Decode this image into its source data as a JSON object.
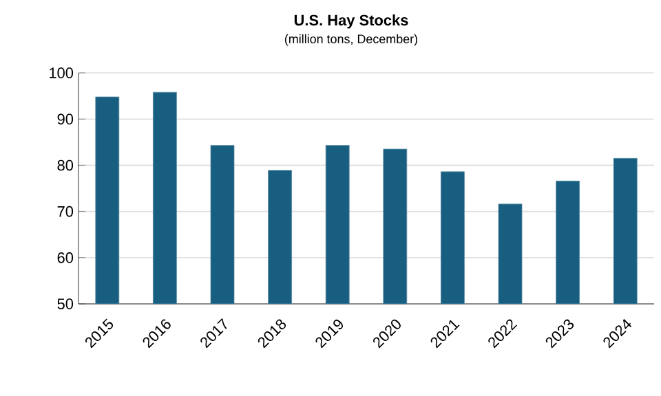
{
  "chart_data": {
    "type": "bar",
    "title": "U.S. Hay Stocks",
    "subtitle": "(million tons, December)",
    "categories": [
      "2015",
      "2016",
      "2017",
      "2018",
      "2019",
      "2020",
      "2021",
      "2022",
      "2023",
      "2024"
    ],
    "values": [
      94.8,
      95.8,
      84.3,
      78.9,
      84.3,
      83.5,
      78.6,
      71.6,
      76.6,
      81.5
    ],
    "color": "#175e80",
    "ylim": [
      50,
      100
    ],
    "yticks": [
      50,
      60,
      70,
      80,
      90,
      100
    ],
    "grid": "y",
    "legend": false
  }
}
